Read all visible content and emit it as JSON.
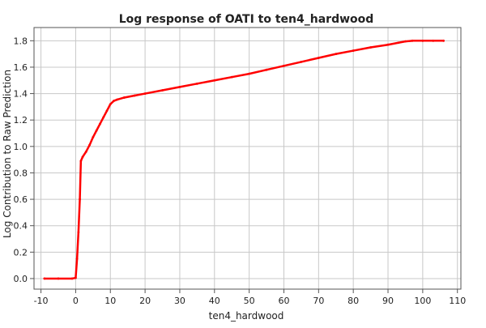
{
  "chart_data": {
    "type": "line",
    "title": "Log response of OATI to ten4_hardwood",
    "xlabel": "ten4_hardwood",
    "ylabel": "Log Contribution to Raw Prediction",
    "xlim": [
      -12,
      111
    ],
    "ylim": [
      -0.08,
      1.9
    ],
    "x_ticks": [
      -10,
      0,
      10,
      20,
      30,
      40,
      50,
      60,
      70,
      80,
      90,
      100,
      110
    ],
    "y_ticks": [
      0.0,
      0.2,
      0.4,
      0.6,
      0.8,
      1.0,
      1.2,
      1.4,
      1.6,
      1.8
    ],
    "y_tick_labels": [
      "0.0",
      "0.2",
      "0.4",
      "0.6",
      "0.8",
      "1.0",
      "1.2",
      "1.4",
      "1.6",
      "1.8"
    ],
    "grid": true,
    "series": [
      {
        "color": "#ff0000",
        "points": [
          [
            -9,
            0.0
          ],
          [
            -5,
            0.0
          ],
          [
            -1,
            0.0
          ],
          [
            0,
            0.005
          ],
          [
            0.4,
            0.15
          ],
          [
            0.8,
            0.35
          ],
          [
            1.2,
            0.6
          ],
          [
            1.5,
            0.89
          ],
          [
            2,
            0.92
          ],
          [
            3,
            0.96
          ],
          [
            4,
            1.01
          ],
          [
            5,
            1.07
          ],
          [
            6,
            1.12
          ],
          [
            7,
            1.17
          ],
          [
            8,
            1.22
          ],
          [
            9,
            1.27
          ],
          [
            10,
            1.32
          ],
          [
            11,
            1.345
          ],
          [
            12,
            1.355
          ],
          [
            14,
            1.37
          ],
          [
            17,
            1.385
          ],
          [
            20,
            1.4
          ],
          [
            25,
            1.425
          ],
          [
            30,
            1.45
          ],
          [
            35,
            1.475
          ],
          [
            40,
            1.5
          ],
          [
            45,
            1.525
          ],
          [
            50,
            1.55
          ],
          [
            55,
            1.58
          ],
          [
            60,
            1.61
          ],
          [
            65,
            1.64
          ],
          [
            70,
            1.67
          ],
          [
            75,
            1.7
          ],
          [
            80,
            1.725
          ],
          [
            85,
            1.75
          ],
          [
            90,
            1.77
          ],
          [
            93,
            1.785
          ],
          [
            95,
            1.795
          ],
          [
            97,
            1.8
          ],
          [
            100,
            1.8
          ],
          [
            103,
            1.8
          ],
          [
            106,
            1.8
          ]
        ]
      }
    ]
  }
}
